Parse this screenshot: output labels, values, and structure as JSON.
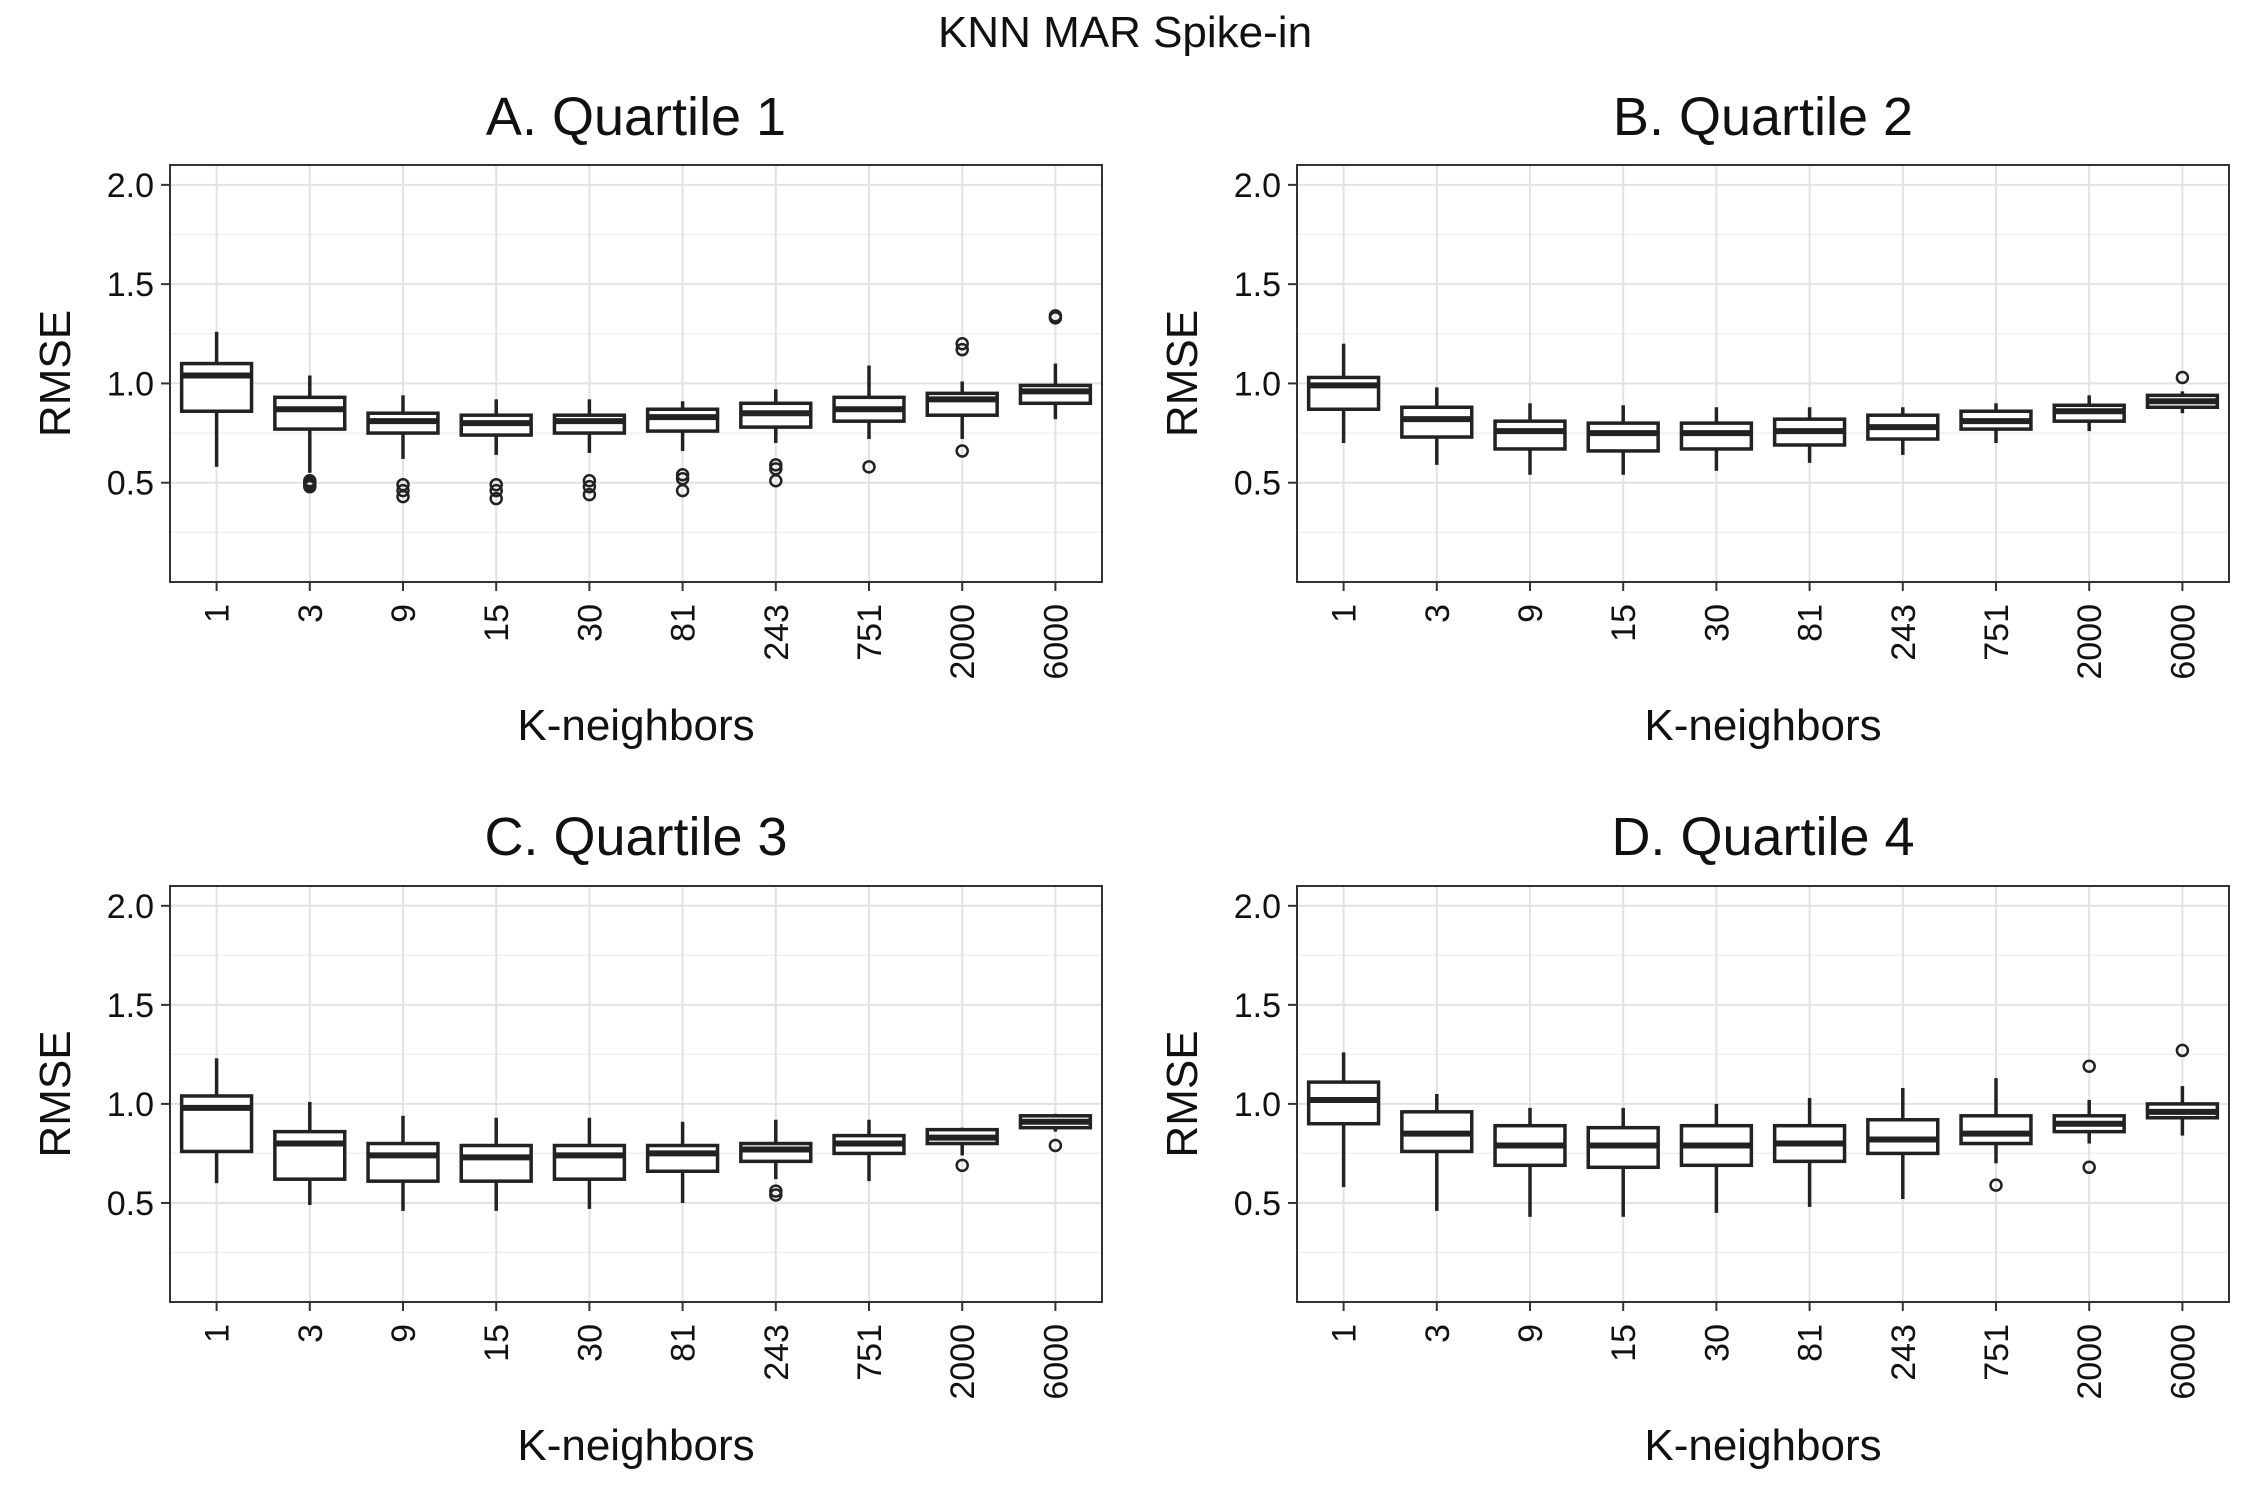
{
  "figure_title": "KNN MAR Spike-in",
  "chart_data": [
    {
      "type": "box",
      "title": "A. Quartile 1",
      "xlabel": "K-neighbors",
      "ylabel": "RMSE",
      "ylim": [
        0,
        2.1
      ],
      "yticks": [
        "0.5",
        "1.0",
        "1.5",
        "2.0"
      ],
      "categories": [
        "1",
        "3",
        "9",
        "15",
        "30",
        "81",
        "243",
        "751",
        "2000",
        "6000"
      ],
      "boxes": [
        {
          "whislo": 0.58,
          "q1": 0.86,
          "med": 1.04,
          "q3": 1.1,
          "whishi": 1.26,
          "fliers": []
        },
        {
          "whislo": 0.55,
          "q1": 0.77,
          "med": 0.87,
          "q3": 0.93,
          "whishi": 1.04,
          "fliers": [
            0.48,
            0.49,
            0.5,
            0.51
          ]
        },
        {
          "whislo": 0.62,
          "q1": 0.75,
          "med": 0.81,
          "q3": 0.85,
          "whishi": 0.94,
          "fliers": [
            0.43,
            0.46,
            0.49
          ]
        },
        {
          "whislo": 0.64,
          "q1": 0.74,
          "med": 0.8,
          "q3": 0.84,
          "whishi": 0.92,
          "fliers": [
            0.42,
            0.46,
            0.49
          ]
        },
        {
          "whislo": 0.65,
          "q1": 0.75,
          "med": 0.81,
          "q3": 0.84,
          "whishi": 0.92,
          "fliers": [
            0.44,
            0.48,
            0.51
          ]
        },
        {
          "whislo": 0.66,
          "q1": 0.76,
          "med": 0.83,
          "q3": 0.87,
          "whishi": 0.91,
          "fliers": [
            0.46,
            0.52,
            0.54
          ]
        },
        {
          "whislo": 0.7,
          "q1": 0.78,
          "med": 0.85,
          "q3": 0.9,
          "whishi": 0.97,
          "fliers": [
            0.51,
            0.57,
            0.59
          ]
        },
        {
          "whislo": 0.72,
          "q1": 0.81,
          "med": 0.87,
          "q3": 0.93,
          "whishi": 1.09,
          "fliers": [
            0.58
          ]
        },
        {
          "whislo": 0.72,
          "q1": 0.84,
          "med": 0.92,
          "q3": 0.95,
          "whishi": 1.01,
          "fliers": [
            0.66,
            1.17,
            1.2
          ]
        },
        {
          "whislo": 0.82,
          "q1": 0.9,
          "med": 0.96,
          "q3": 0.99,
          "whishi": 1.1,
          "fliers": [
            1.33,
            1.34
          ]
        }
      ]
    },
    {
      "type": "box",
      "title": "B. Quartile 2",
      "xlabel": "K-neighbors",
      "ylabel": "RMSE",
      "ylim": [
        0,
        2.1
      ],
      "yticks": [
        "0.5",
        "1.0",
        "1.5",
        "2.0"
      ],
      "categories": [
        "1",
        "3",
        "9",
        "15",
        "30",
        "81",
        "243",
        "751",
        "2000",
        "6000"
      ],
      "boxes": [
        {
          "whislo": 0.7,
          "q1": 0.87,
          "med": 0.99,
          "q3": 1.03,
          "whishi": 1.2,
          "fliers": []
        },
        {
          "whislo": 0.59,
          "q1": 0.73,
          "med": 0.82,
          "q3": 0.88,
          "whishi": 0.98,
          "fliers": []
        },
        {
          "whislo": 0.54,
          "q1": 0.67,
          "med": 0.76,
          "q3": 0.81,
          "whishi": 0.9,
          "fliers": []
        },
        {
          "whislo": 0.54,
          "q1": 0.66,
          "med": 0.75,
          "q3": 0.8,
          "whishi": 0.89,
          "fliers": []
        },
        {
          "whislo": 0.56,
          "q1": 0.67,
          "med": 0.75,
          "q3": 0.8,
          "whishi": 0.88,
          "fliers": []
        },
        {
          "whislo": 0.6,
          "q1": 0.69,
          "med": 0.76,
          "q3": 0.82,
          "whishi": 0.88,
          "fliers": []
        },
        {
          "whislo": 0.64,
          "q1": 0.72,
          "med": 0.78,
          "q3": 0.84,
          "whishi": 0.88,
          "fliers": []
        },
        {
          "whislo": 0.7,
          "q1": 0.77,
          "med": 0.81,
          "q3": 0.86,
          "whishi": 0.9,
          "fliers": []
        },
        {
          "whislo": 0.76,
          "q1": 0.81,
          "med": 0.86,
          "q3": 0.89,
          "whishi": 0.94,
          "fliers": []
        },
        {
          "whislo": 0.85,
          "q1": 0.88,
          "med": 0.91,
          "q3": 0.94,
          "whishi": 0.96,
          "fliers": [
            1.03
          ]
        }
      ]
    },
    {
      "type": "box",
      "title": "C. Quartile 3",
      "xlabel": "K-neighbors",
      "ylabel": "RMSE",
      "ylim": [
        0,
        2.1
      ],
      "yticks": [
        "0.5",
        "1.0",
        "1.5",
        "2.0"
      ],
      "categories": [
        "1",
        "3",
        "9",
        "15",
        "30",
        "81",
        "243",
        "751",
        "2000",
        "6000"
      ],
      "boxes": [
        {
          "whislo": 0.6,
          "q1": 0.76,
          "med": 0.98,
          "q3": 1.04,
          "whishi": 1.23,
          "fliers": []
        },
        {
          "whislo": 0.49,
          "q1": 0.62,
          "med": 0.8,
          "q3": 0.86,
          "whishi": 1.01,
          "fliers": []
        },
        {
          "whislo": 0.46,
          "q1": 0.61,
          "med": 0.74,
          "q3": 0.8,
          "whishi": 0.94,
          "fliers": []
        },
        {
          "whislo": 0.46,
          "q1": 0.61,
          "med": 0.73,
          "q3": 0.79,
          "whishi": 0.93,
          "fliers": []
        },
        {
          "whislo": 0.47,
          "q1": 0.62,
          "med": 0.74,
          "q3": 0.79,
          "whishi": 0.93,
          "fliers": []
        },
        {
          "whislo": 0.5,
          "q1": 0.66,
          "med": 0.75,
          "q3": 0.79,
          "whishi": 0.91,
          "fliers": []
        },
        {
          "whislo": 0.62,
          "q1": 0.71,
          "med": 0.77,
          "q3": 0.8,
          "whishi": 0.92,
          "fliers": [
            0.54,
            0.56
          ]
        },
        {
          "whislo": 0.61,
          "q1": 0.75,
          "med": 0.8,
          "q3": 0.84,
          "whishi": 0.92,
          "fliers": []
        },
        {
          "whislo": 0.74,
          "q1": 0.8,
          "med": 0.83,
          "q3": 0.87,
          "whishi": 0.88,
          "fliers": [
            0.69
          ]
        },
        {
          "whislo": 0.86,
          "q1": 0.88,
          "med": 0.91,
          "q3": 0.94,
          "whishi": 0.95,
          "fliers": [
            0.79
          ]
        }
      ]
    },
    {
      "type": "box",
      "title": "D. Quartile 4",
      "xlabel": "K-neighbors",
      "ylabel": "RMSE",
      "ylim": [
        0,
        2.1
      ],
      "yticks": [
        "0.5",
        "1.0",
        "1.5",
        "2.0"
      ],
      "categories": [
        "1",
        "3",
        "9",
        "15",
        "30",
        "81",
        "243",
        "751",
        "2000",
        "6000"
      ],
      "boxes": [
        {
          "whislo": 0.58,
          "q1": 0.9,
          "med": 1.02,
          "q3": 1.11,
          "whishi": 1.26,
          "fliers": []
        },
        {
          "whislo": 0.46,
          "q1": 0.76,
          "med": 0.85,
          "q3": 0.96,
          "whishi": 1.05,
          "fliers": []
        },
        {
          "whislo": 0.43,
          "q1": 0.69,
          "med": 0.79,
          "q3": 0.89,
          "whishi": 0.98,
          "fliers": []
        },
        {
          "whislo": 0.43,
          "q1": 0.68,
          "med": 0.79,
          "q3": 0.88,
          "whishi": 0.98,
          "fliers": []
        },
        {
          "whislo": 0.45,
          "q1": 0.69,
          "med": 0.79,
          "q3": 0.89,
          "whishi": 1.0,
          "fliers": []
        },
        {
          "whislo": 0.48,
          "q1": 0.71,
          "med": 0.8,
          "q3": 0.89,
          "whishi": 1.03,
          "fliers": []
        },
        {
          "whislo": 0.52,
          "q1": 0.75,
          "med": 0.82,
          "q3": 0.92,
          "whishi": 1.08,
          "fliers": []
        },
        {
          "whislo": 0.7,
          "q1": 0.8,
          "med": 0.85,
          "q3": 0.94,
          "whishi": 1.13,
          "fliers": [
            0.59
          ]
        },
        {
          "whislo": 0.8,
          "q1": 0.86,
          "med": 0.9,
          "q3": 0.94,
          "whishi": 1.02,
          "fliers": [
            0.68,
            1.19
          ]
        },
        {
          "whislo": 0.84,
          "q1": 0.93,
          "med": 0.96,
          "q3": 1.0,
          "whishi": 1.09,
          "fliers": [
            1.27
          ]
        }
      ]
    }
  ]
}
